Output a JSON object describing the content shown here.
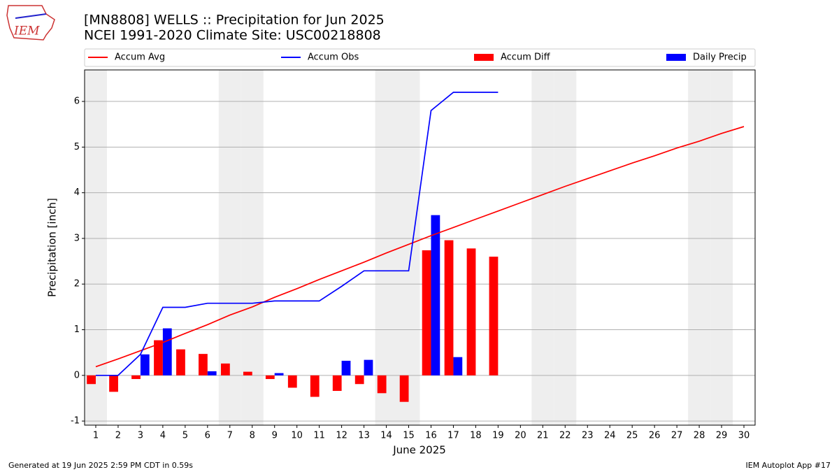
{
  "chart_data": {
    "type": "bar_line",
    "title": "[MN8808] WELLS :: Precipitation for Jun 2025",
    "subtitle": "NCEI 1991-2020 Climate Site: USC00218808",
    "logo_text": "IEM",
    "x_label": "June 2025",
    "y_label": "Precipitation [inch]",
    "footer_left": "Generated at 19 Jun 2025 2:59 PM CDT in 0.59s",
    "footer_right": "IEM Autoplot App #17",
    "x": [
      1,
      2,
      3,
      4,
      5,
      6,
      7,
      8,
      9,
      10,
      11,
      12,
      13,
      14,
      15,
      16,
      17,
      18,
      19,
      20,
      21,
      22,
      23,
      24,
      25,
      26,
      27,
      28,
      29,
      30
    ],
    "shaded_days": [
      1,
      7,
      8,
      14,
      15,
      21,
      22,
      28,
      29
    ],
    "shade_color": "#eeeeee",
    "series": [
      {
        "name": "Accum Avg",
        "kind": "line",
        "color": "#ff0000",
        "values": [
          0.19,
          0.36,
          0.54,
          0.72,
          0.92,
          1.11,
          1.32,
          1.5,
          1.71,
          1.9,
          2.1,
          2.29,
          2.48,
          2.68,
          2.87,
          3.06,
          3.24,
          3.42,
          3.6,
          3.78,
          3.96,
          4.14,
          4.31,
          4.48,
          4.65,
          4.81,
          4.98,
          5.13,
          5.3,
          5.45
        ]
      },
      {
        "name": "Accum Obs",
        "kind": "line",
        "color": "#0000ff",
        "values": [
          0,
          0,
          0.46,
          1.49,
          1.49,
          1.58,
          1.58,
          1.58,
          1.63,
          1.63,
          1.63,
          1.95,
          2.29,
          2.29,
          2.29,
          5.8,
          6.2,
          6.2,
          6.2,
          null,
          null,
          null,
          null,
          null,
          null,
          null,
          null,
          null,
          null,
          null
        ]
      },
      {
        "name": "Accum Diff",
        "kind": "bar",
        "color": "#ff0000",
        "values": [
          -0.19,
          -0.36,
          -0.08,
          0.77,
          0.57,
          0.47,
          0.26,
          0.08,
          -0.08,
          -0.27,
          -0.47,
          -0.34,
          -0.19,
          -0.39,
          -0.58,
          2.74,
          2.96,
          2.78,
          2.6,
          null,
          null,
          null,
          null,
          null,
          null,
          null,
          null,
          null,
          null,
          null
        ]
      },
      {
        "name": "Daily Precip",
        "kind": "bar",
        "color": "#0000ff",
        "values": [
          0,
          0,
          0.46,
          1.03,
          0,
          0.09,
          0,
          0,
          0.05,
          0,
          0,
          0.32,
          0.34,
          0,
          0,
          3.51,
          0.4,
          0,
          0,
          null,
          null,
          null,
          null,
          null,
          null,
          null,
          null,
          null,
          null,
          null
        ]
      }
    ],
    "xlim": [
      0.5,
      30.5
    ],
    "ylim": [
      -1.09,
      6.69
    ],
    "xticks": [
      1,
      2,
      3,
      4,
      5,
      6,
      7,
      8,
      9,
      10,
      11,
      12,
      13,
      14,
      15,
      16,
      17,
      18,
      19,
      20,
      21,
      22,
      23,
      24,
      25,
      26,
      27,
      28,
      29,
      30
    ],
    "yticks": [
      -1,
      0,
      1,
      2,
      3,
      4,
      5,
      6
    ],
    "grid": "y"
  }
}
